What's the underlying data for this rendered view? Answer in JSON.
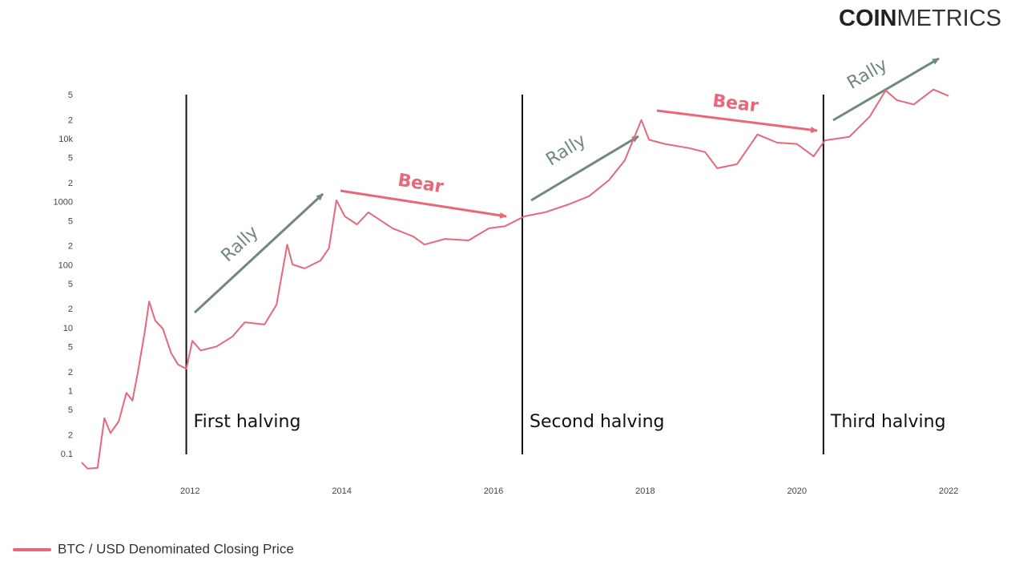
{
  "brand": {
    "bold": "COIN",
    "light": "METRICS"
  },
  "chart_data": {
    "type": "line",
    "log_y": true,
    "grid": false,
    "x": [
      2010.57,
      2010.65,
      2010.78,
      2010.87,
      2010.95,
      2011.06,
      2011.16,
      2011.24,
      2011.31,
      2011.4,
      2011.46,
      2011.54,
      2011.64,
      2011.75,
      2011.84,
      2011.95,
      2012.03,
      2012.14,
      2012.35,
      2012.56,
      2012.72,
      2012.98,
      2013.14,
      2013.28,
      2013.35,
      2013.51,
      2013.72,
      2013.83,
      2013.93,
      2014.04,
      2014.2,
      2014.35,
      2014.67,
      2014.94,
      2015.09,
      2015.36,
      2015.67,
      2015.94,
      2016.15,
      2016.41,
      2016.68,
      2016.99,
      2017.26,
      2017.52,
      2017.73,
      2017.95,
      2018.05,
      2018.26,
      2018.58,
      2018.79,
      2018.95,
      2019.21,
      2019.48,
      2019.74,
      2020.0,
      2020.22,
      2020.37,
      2020.69,
      2020.96,
      2021.17,
      2021.32,
      2021.54,
      2021.8,
      2022.0
    ],
    "series": [
      {
        "name": "BTC / USD Denominated Closing Price",
        "color": "#e8677a",
        "values": [
          0.075,
          0.06,
          0.062,
          0.38,
          0.22,
          0.34,
          0.96,
          0.72,
          2.0,
          8.6,
          27,
          13.4,
          10,
          4.1,
          2.7,
          2.3,
          6.4,
          4.5,
          5.2,
          7.5,
          12.6,
          11.6,
          24,
          215,
          104,
          90,
          120,
          188,
          1085,
          605,
          450,
          700,
          390,
          290,
          215,
          265,
          250,
          390,
          420,
          605,
          700,
          935,
          1260,
          2250,
          4650,
          20400,
          9900,
          8500,
          7300,
          6300,
          3500,
          4050,
          12000,
          8900,
          8500,
          5400,
          9700,
          11000,
          23000,
          60000,
          42000,
          36000,
          62000,
          49000
        ]
      }
    ],
    "xlim": [
      2010.55,
      2022.02
    ],
    "xticks": [
      2012,
      2014,
      2016,
      2018,
      2020,
      2022
    ],
    "ylim": [
      0.05,
      80000
    ],
    "yticks": [
      0.1,
      {
        "value": 0.2,
        "label": "2"
      },
      {
        "value": 0.5,
        "label": "5"
      },
      1,
      {
        "value": 2,
        "label": "2"
      },
      {
        "value": 5,
        "label": "5"
      },
      10,
      {
        "value": 20,
        "label": "2"
      },
      {
        "value": 50,
        "label": "5"
      },
      100,
      {
        "value": 200,
        "label": "2"
      },
      {
        "value": 500,
        "label": "5"
      },
      1000,
      {
        "value": 2000,
        "label": "2"
      },
      {
        "value": 5000,
        "label": "5"
      },
      {
        "value": 10000,
        "label": "10k"
      },
      {
        "value": 20000,
        "label": "2"
      },
      {
        "value": 50000,
        "label": "5"
      }
    ],
    "halvings": [
      {
        "x": 2011.95,
        "label": "First halving"
      },
      {
        "x": 2016.38,
        "label": "Second halving"
      },
      {
        "x": 2020.35,
        "label": "Third halving"
      }
    ],
    "annotations": [
      "Rally",
      "Bear",
      "Rally",
      "Bear",
      "Rally"
    ],
    "legend": "bottom-left"
  }
}
